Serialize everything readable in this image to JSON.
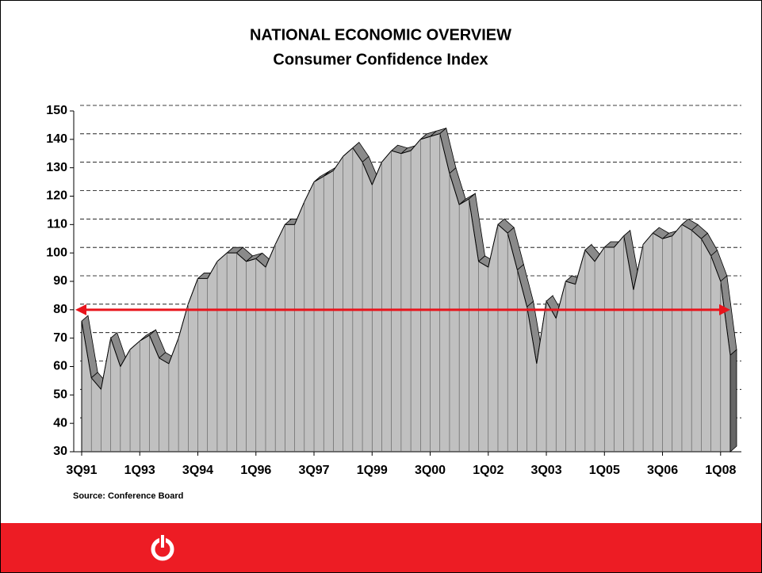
{
  "chart_data": {
    "type": "area",
    "title": "NATIONAL ECONOMIC OVERVIEW",
    "subtitle": "Consumer Confidence Index",
    "source": "Source: Conference Board",
    "categories": [
      "3Q91",
      null,
      null,
      null,
      null,
      null,
      "1Q93",
      null,
      null,
      null,
      null,
      null,
      "3Q94",
      null,
      null,
      null,
      null,
      null,
      "1Q96",
      null,
      null,
      null,
      null,
      null,
      "3Q97",
      null,
      null,
      null,
      null,
      null,
      "1Q99",
      null,
      null,
      null,
      null,
      null,
      "3Q00",
      null,
      null,
      null,
      null,
      null,
      "1Q02",
      null,
      null,
      null,
      null,
      null,
      "3Q03",
      null,
      null,
      null,
      null,
      null,
      "1Q05",
      null,
      null,
      null,
      null,
      null,
      "3Q06",
      null,
      null,
      null,
      null,
      null,
      "1Q08",
      null
    ],
    "values": [
      76,
      56,
      52,
      70,
      60,
      66,
      69,
      71,
      63,
      61,
      70,
      82,
      91,
      91,
      97,
      100,
      100,
      97,
      98,
      95,
      103,
      110,
      110,
      118,
      125,
      127,
      129,
      134,
      137,
      132,
      124,
      132,
      136,
      135,
      136,
      140,
      141,
      142,
      128,
      117,
      119,
      97,
      95,
      110,
      107,
      94,
      81,
      61,
      83,
      77,
      90,
      89,
      101,
      97,
      102,
      102,
      106,
      87,
      103,
      107,
      105,
      106,
      110,
      108,
      105,
      99,
      90,
      64
    ],
    "color": "#c0c0c0",
    "ylim": [
      30,
      150
    ],
    "yticks": [
      30,
      40,
      50,
      60,
      70,
      80,
      90,
      100,
      110,
      120,
      130,
      140,
      150
    ],
    "grid": true,
    "reference_line": {
      "value": 80,
      "color": "#e8141c"
    }
  }
}
